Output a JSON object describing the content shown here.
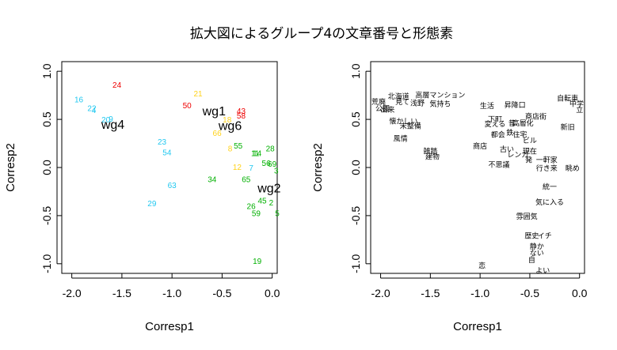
{
  "title": "拡大図によるグループ4の文章番号と形態素",
  "colors": {
    "red": "#ee0000",
    "yellow": "#ffd21a",
    "green": "#00b000",
    "cyan": "#22c8f0",
    "black": "#000000"
  },
  "chart_data": [
    {
      "type": "scatter",
      "xlabel": "Corresp1",
      "ylabel": "Corresp2",
      "xlim": [
        -2.1,
        0.05
      ],
      "ylim": [
        -1.1,
        1.1
      ],
      "xticks": [
        -2.0,
        -1.5,
        -1.0,
        -0.5,
        0.0
      ],
      "yticks": [
        -1.0,
        -0.5,
        0.0,
        0.5,
        1.0
      ],
      "xtick_labels": [
        "-2.0",
        "-1.5",
        "-1.0",
        "-0.5",
        "0.0"
      ],
      "ytick_labels": [
        "-1.0",
        "-0.5",
        "0.0",
        "0.5",
        "1.0"
      ],
      "points": [
        {
          "label": "24",
          "x": -1.55,
          "y": 0.86,
          "color": "red"
        },
        {
          "label": "50",
          "x": -0.85,
          "y": 0.65,
          "color": "red"
        },
        {
          "label": "43",
          "x": -0.31,
          "y": 0.59,
          "color": "red"
        },
        {
          "label": "58",
          "x": -0.31,
          "y": 0.54,
          "color": "red"
        },
        {
          "label": "21",
          "x": -0.74,
          "y": 0.77,
          "color": "yellow"
        },
        {
          "label": "18",
          "x": -0.45,
          "y": 0.5,
          "color": "yellow"
        },
        {
          "label": "66",
          "x": -0.55,
          "y": 0.36,
          "color": "yellow"
        },
        {
          "label": "8",
          "x": -0.42,
          "y": 0.2,
          "color": "yellow"
        },
        {
          "label": "12",
          "x": -0.35,
          "y": 0.01,
          "color": "yellow"
        },
        {
          "label": "55",
          "x": -0.34,
          "y": 0.23,
          "color": "green"
        },
        {
          "label": "11",
          "x": -0.17,
          "y": 0.15,
          "color": "green"
        },
        {
          "label": "14",
          "x": -0.15,
          "y": 0.15,
          "color": "green"
        },
        {
          "label": "28",
          "x": -0.02,
          "y": 0.2,
          "color": "green"
        },
        {
          "label": "56",
          "x": -0.06,
          "y": 0.05,
          "color": "green"
        },
        {
          "label": "69",
          "x": 0.0,
          "y": 0.04,
          "color": "green"
        },
        {
          "label": "3",
          "x": 0.04,
          "y": -0.03,
          "color": "green"
        },
        {
          "label": "34",
          "x": -0.6,
          "y": -0.12,
          "color": "green"
        },
        {
          "label": "65",
          "x": -0.26,
          "y": -0.12,
          "color": "green"
        },
        {
          "label": "45",
          "x": -0.1,
          "y": -0.34,
          "color": "green"
        },
        {
          "label": "2",
          "x": -0.01,
          "y": -0.36,
          "color": "green"
        },
        {
          "label": "26",
          "x": -0.21,
          "y": -0.4,
          "color": "green"
        },
        {
          "label": "59",
          "x": -0.16,
          "y": -0.47,
          "color": "green"
        },
        {
          "label": "5",
          "x": 0.05,
          "y": -0.47,
          "color": "green"
        },
        {
          "label": "19",
          "x": -0.15,
          "y": -0.97,
          "color": "green"
        },
        {
          "label": "16",
          "x": -1.93,
          "y": 0.71,
          "color": "cyan"
        },
        {
          "label": "22",
          "x": -1.8,
          "y": 0.62,
          "color": "cyan"
        },
        {
          "label": "4",
          "x": -1.78,
          "y": 0.6,
          "color": "cyan"
        },
        {
          "label": "20",
          "x": -1.66,
          "y": 0.5,
          "color": "cyan"
        },
        {
          "label": "9",
          "x": -1.61,
          "y": 0.51,
          "color": "cyan"
        },
        {
          "label": "23",
          "x": -1.1,
          "y": 0.27,
          "color": "cyan"
        },
        {
          "label": "54",
          "x": -1.05,
          "y": 0.16,
          "color": "cyan"
        },
        {
          "label": "7",
          "x": -0.21,
          "y": 0.0,
          "color": "cyan"
        },
        {
          "label": "63",
          "x": -1.0,
          "y": -0.18,
          "color": "cyan"
        },
        {
          "label": "29",
          "x": -1.2,
          "y": -0.37,
          "color": "cyan"
        }
      ],
      "groups": [
        {
          "label": "wg1",
          "x": -0.58,
          "y": 0.59
        },
        {
          "label": "wg4",
          "x": -1.59,
          "y": 0.45
        },
        {
          "label": "wg6",
          "x": -0.42,
          "y": 0.44
        },
        {
          "label": "wg2",
          "x": -0.03,
          "y": -0.21
        }
      ]
    },
    {
      "type": "scatter",
      "xlabel": "Corresp1",
      "ylabel": "Corresp2",
      "xlim": [
        -2.1,
        0.05
      ],
      "ylim": [
        -1.1,
        1.1
      ],
      "xticks": [
        -2.0,
        -1.5,
        -1.0,
        -0.5,
        0.0
      ],
      "yticks": [
        -1.0,
        -0.5,
        0.0,
        0.5,
        1.0
      ],
      "xtick_labels": [
        "-2.0",
        "-1.5",
        "-1.0",
        "-0.5",
        "0.0"
      ],
      "ytick_labels": [
        "-1.0",
        "-0.5",
        "0.0",
        "0.5",
        "1.0"
      ],
      "words": [
        {
          "label": "北海道",
          "x": -1.82,
          "y": 0.74
        },
        {
          "label": "高層マンション",
          "x": -1.4,
          "y": 0.75
        },
        {
          "label": "自転車",
          "x": -0.12,
          "y": 0.72
        },
        {
          "label": "荒廃",
          "x": -2.02,
          "y": 0.68
        },
        {
          "label": "見て",
          "x": -1.78,
          "y": 0.68
        },
        {
          "label": "浅野",
          "x": -1.63,
          "y": 0.67
        },
        {
          "label": "気持ち",
          "x": -1.4,
          "y": 0.66
        },
        {
          "label": "生活",
          "x": -0.93,
          "y": 0.64
        },
        {
          "label": "昇降口",
          "x": -0.65,
          "y": 0.65
        },
        {
          "label": "中学",
          "x": -0.03,
          "y": 0.66
        },
        {
          "label": "公園",
          "x": -1.98,
          "y": 0.61
        },
        {
          "label": "出来",
          "x": -1.93,
          "y": 0.6
        },
        {
          "label": "立",
          "x": 0.0,
          "y": 0.6
        },
        {
          "label": "懐かしい",
          "x": -1.77,
          "y": 0.48
        },
        {
          "label": "下町",
          "x": -0.85,
          "y": 0.5
        },
        {
          "label": "商店街",
          "x": -0.44,
          "y": 0.53
        },
        {
          "label": "未整備",
          "x": -1.7,
          "y": 0.43
        },
        {
          "label": "変える",
          "x": -0.85,
          "y": 0.45
        },
        {
          "label": "昔",
          "x": -0.68,
          "y": 0.46
        },
        {
          "label": "高層化",
          "x": -0.57,
          "y": 0.46
        },
        {
          "label": "新旧",
          "x": -0.12,
          "y": 0.42
        },
        {
          "label": "都会",
          "x": -0.82,
          "y": 0.34
        },
        {
          "label": "鉄",
          "x": -0.7,
          "y": 0.36
        },
        {
          "label": "住宅",
          "x": -0.6,
          "y": 0.34
        },
        {
          "label": "風情",
          "x": -1.8,
          "y": 0.3
        },
        {
          "label": "ビル",
          "x": -0.5,
          "y": 0.28
        },
        {
          "label": "商店",
          "x": -1.0,
          "y": 0.22
        },
        {
          "label": "古い",
          "x": -0.73,
          "y": 0.19
        },
        {
          "label": "現在",
          "x": -0.5,
          "y": 0.17
        },
        {
          "label": "雑踏",
          "x": -1.5,
          "y": 0.17
        },
        {
          "label": "建物",
          "x": -1.48,
          "y": 0.11
        },
        {
          "label": "レンガ",
          "x": -0.62,
          "y": 0.13
        },
        {
          "label": "発",
          "x": -0.51,
          "y": 0.08
        },
        {
          "label": "一軒家",
          "x": -0.33,
          "y": 0.08
        },
        {
          "label": "不思議",
          "x": -0.81,
          "y": 0.03
        },
        {
          "label": "行き来",
          "x": -0.33,
          "y": -0.01
        },
        {
          "label": "眺め",
          "x": -0.07,
          "y": -0.01
        },
        {
          "label": "統一",
          "x": -0.3,
          "y": -0.2
        },
        {
          "label": "気に入る",
          "x": -0.3,
          "y": -0.36
        },
        {
          "label": "雰囲気",
          "x": -0.53,
          "y": -0.51
        },
        {
          "label": "歴史",
          "x": -0.48,
          "y": -0.71
        },
        {
          "label": "イチ",
          "x": -0.35,
          "y": -0.71
        },
        {
          "label": "静か",
          "x": -0.43,
          "y": -0.82
        },
        {
          "label": "ない",
          "x": -0.43,
          "y": -0.89
        },
        {
          "label": "自",
          "x": -0.48,
          "y": -0.96
        },
        {
          "label": "恋",
          "x": -0.98,
          "y": -1.02
        },
        {
          "label": "よい",
          "x": -0.37,
          "y": -1.07
        }
      ]
    }
  ]
}
